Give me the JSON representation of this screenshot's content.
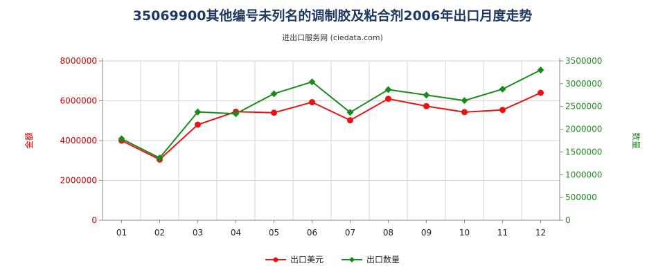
{
  "chart_data": {
    "type": "line",
    "title": "35069900其他编号未列名的调制胶及粘合剂2006年出口月度走势",
    "subtitle": "进出口服务网 (ciedata.com)",
    "categories": [
      "01",
      "02",
      "03",
      "04",
      "05",
      "06",
      "07",
      "08",
      "09",
      "10",
      "11",
      "12"
    ],
    "y_left": {
      "label": "金额",
      "range": [
        0,
        8000000
      ],
      "ticks": [
        "0",
        "2000000",
        "4000000",
        "6000000",
        "8000000"
      ],
      "tick_values": [
        0,
        2000000,
        4000000,
        6000000,
        8000000
      ],
      "color": "#cc0000"
    },
    "y_right": {
      "label": "数量",
      "range": [
        0,
        3500000
      ],
      "ticks": [
        "0",
        "500000",
        "1000000",
        "1500000",
        "2000000",
        "2500000",
        "3000000",
        "3500000"
      ],
      "tick_values": [
        0,
        500000,
        1000000,
        1500000,
        2000000,
        2500000,
        3000000,
        3500000
      ],
      "color": "#228b22"
    },
    "series": [
      {
        "name": "出口美元",
        "axis": "left",
        "color": "#ee1111",
        "values": [
          4000000,
          3050000,
          4800000,
          5450000,
          5400000,
          5930000,
          5020000,
          6100000,
          5730000,
          5430000,
          5540000,
          6400000
        ]
      },
      {
        "name": "出口数量",
        "axis": "right",
        "color": "#1a8a1a",
        "values": [
          1790000,
          1370000,
          2380000,
          2340000,
          2780000,
          3040000,
          2370000,
          2870000,
          2750000,
          2630000,
          2880000,
          3300000
        ]
      }
    ],
    "grid": true,
    "legend_position": "bottom"
  }
}
